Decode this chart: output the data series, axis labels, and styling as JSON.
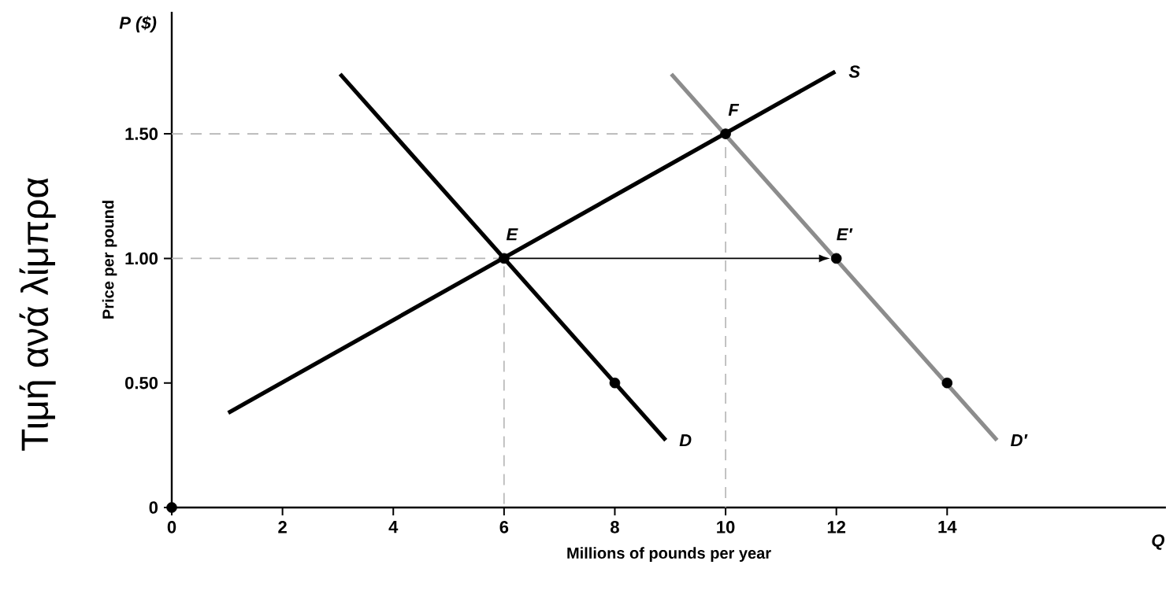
{
  "chart_data": {
    "type": "line",
    "xlabel": "Millions of pounds per year",
    "ylabel": "Price per pound",
    "xlim": [
      0,
      17.95
    ],
    "ylim": [
      0,
      1.99
    ],
    "xticks": [
      0,
      2,
      4,
      6,
      8,
      10,
      12,
      14
    ],
    "yticks": [
      0,
      {
        "value": 0.5,
        "label": "0.50"
      },
      {
        "value": 1.0,
        "label": "1.00"
      },
      {
        "value": 1.5,
        "label": "1.50"
      }
    ],
    "annotations": [
      "P ($)",
      "Q",
      "Τιμή ανά λίμπρα",
      {
        "text": "E",
        "x": 6,
        "y": 1.0
      },
      {
        "text": "F",
        "x": 10,
        "y": 1.5
      },
      {
        "text": "E′",
        "x": 12,
        "y": 1.0
      }
    ],
    "series": [
      {
        "line_style": "dashed",
        "color": "#b4b4b4",
        "x": [
          0,
          10,
          10
        ],
        "values": [
          1.5,
          1.5,
          0
        ]
      },
      {
        "line_style": "dashed",
        "color": "#b4b4b4",
        "x": [
          0,
          6,
          6
        ],
        "values": [
          1.0,
          1.0,
          0
        ]
      },
      {
        "name": "S",
        "color": "#000000",
        "x": [
          1.02,
          11.98
        ],
        "values": [
          0.38,
          1.75
        ]
      },
      {
        "name": "D",
        "color": "#000000",
        "x": [
          3.04,
          8.92
        ],
        "values": [
          1.74,
          0.27
        ]
      },
      {
        "name": "D′",
        "color": "#8c8c8c",
        "x": [
          9.02,
          14.9
        ],
        "values": [
          1.74,
          0.27
        ]
      },
      {
        "type": "scatter",
        "marker": "circle",
        "color": "#000000",
        "x": [
          0,
          6,
          8,
          10,
          12,
          14
        ],
        "values": [
          0,
          1.0,
          0.5,
          1.5,
          1.0,
          0.5
        ]
      }
    ]
  }
}
